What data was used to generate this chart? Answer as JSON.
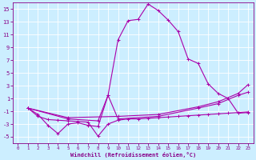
{
  "background_color": "#cceeff",
  "line_color": "#aa00aa",
  "grid_color": "#ffffff",
  "xlabel": "Windchill (Refroidissement éolien,°C)",
  "xlabel_color": "#880088",
  "tick_color": "#880088",
  "xlim": [
    -0.5,
    23.5
  ],
  "ylim": [
    -6,
    16
  ],
  "yticks": [
    -5,
    -3,
    -1,
    1,
    3,
    5,
    7,
    9,
    11,
    13,
    15
  ],
  "xticks": [
    0,
    1,
    2,
    3,
    4,
    5,
    6,
    7,
    8,
    9,
    10,
    11,
    12,
    13,
    14,
    15,
    16,
    17,
    18,
    19,
    20,
    21,
    22,
    23
  ],
  "line1_x": [
    1,
    2,
    3,
    4,
    5,
    6,
    7,
    8,
    9,
    10,
    11,
    12,
    13,
    14,
    15,
    16,
    17,
    18,
    19,
    20,
    21,
    22,
    23
  ],
  "line1_y": [
    -0.5,
    -1.5,
    -3.2,
    -4.5,
    -3.0,
    -2.8,
    -3.2,
    -3.4,
    1.5,
    10.2,
    13.2,
    13.4,
    15.8,
    14.8,
    13.3,
    11.5,
    7.2,
    6.5,
    3.3,
    1.8,
    1.0,
    -1.3,
    -1.2
  ],
  "line2_x": [
    1,
    2,
    3,
    4,
    5,
    6,
    7,
    8,
    9,
    10,
    11,
    12,
    13,
    14,
    15,
    16,
    17,
    18,
    19,
    20,
    21,
    22,
    23
  ],
  "line2_y": [
    -0.5,
    -1.8,
    -2.3,
    -2.4,
    -2.5,
    -2.6,
    -2.7,
    -4.9,
    -3.0,
    -2.4,
    -2.2,
    -2.2,
    -2.1,
    -2.0,
    -1.9,
    -1.8,
    -1.7,
    -1.6,
    -1.5,
    -1.4,
    -1.3,
    -1.2,
    -1.1
  ],
  "line3_x": [
    1,
    5,
    8,
    9,
    10,
    14,
    18,
    20,
    22,
    23
  ],
  "line3_y": [
    -0.5,
    -2.2,
    -2.5,
    1.5,
    -2.2,
    -1.8,
    -0.5,
    0.2,
    1.5,
    2.0
  ],
  "line4_x": [
    1,
    5,
    10,
    14,
    18,
    20,
    22,
    23
  ],
  "line4_y": [
    -0.5,
    -2.0,
    -1.8,
    -1.5,
    -0.3,
    0.5,
    1.8,
    3.2
  ]
}
